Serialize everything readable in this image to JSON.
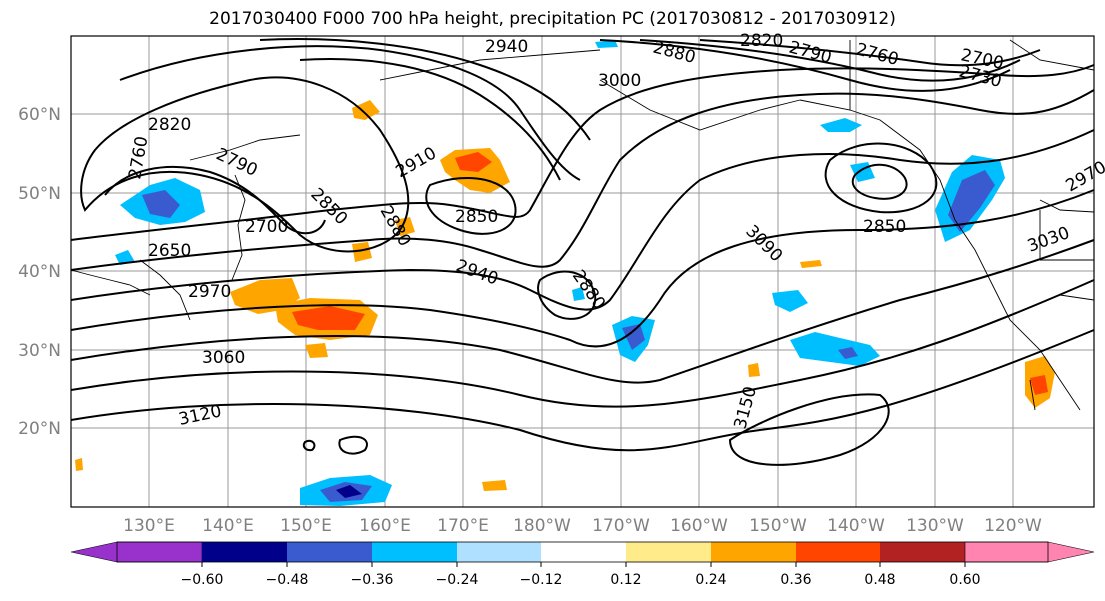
{
  "title": "2017030400 F000 700 hPa height, precipitation PC (2017030812 - 2017030912)",
  "map": {
    "lat_ticks": [
      "60°N",
      "50°N",
      "40°N",
      "30°N",
      "20°N"
    ],
    "lon_ticks": [
      "130°E",
      "140°E",
      "150°E",
      "160°E",
      "170°E",
      "180°W",
      "170°W",
      "160°W",
      "150°W",
      "140°W",
      "130°W",
      "120°W"
    ],
    "contour_labels": [
      "2940",
      "2880",
      "2820",
      "2790",
      "2760",
      "2700",
      "2730",
      "3000",
      "2820",
      "2790",
      "2700",
      "2910",
      "2850",
      "2850",
      "2880",
      "2940",
      "2880",
      "3090",
      "2850",
      "3030",
      "2970",
      "3060",
      "3120",
      "3150",
      "2970",
      "2650",
      "2760"
    ]
  },
  "colorbar": {
    "colors": [
      "#9932cc",
      "#00008b",
      "#3a5bd0",
      "#00bfff",
      "#b0e0ff",
      "#ffffff",
      "#ffeb8a",
      "#ffa500",
      "#ff4500",
      "#b22222",
      "#ff85b0"
    ],
    "tick_labels": [
      "−0.60",
      "−0.48",
      "−0.36",
      "−0.24",
      "−0.12",
      "0.12",
      "0.24",
      "0.36",
      "0.48",
      "0.60"
    ]
  }
}
